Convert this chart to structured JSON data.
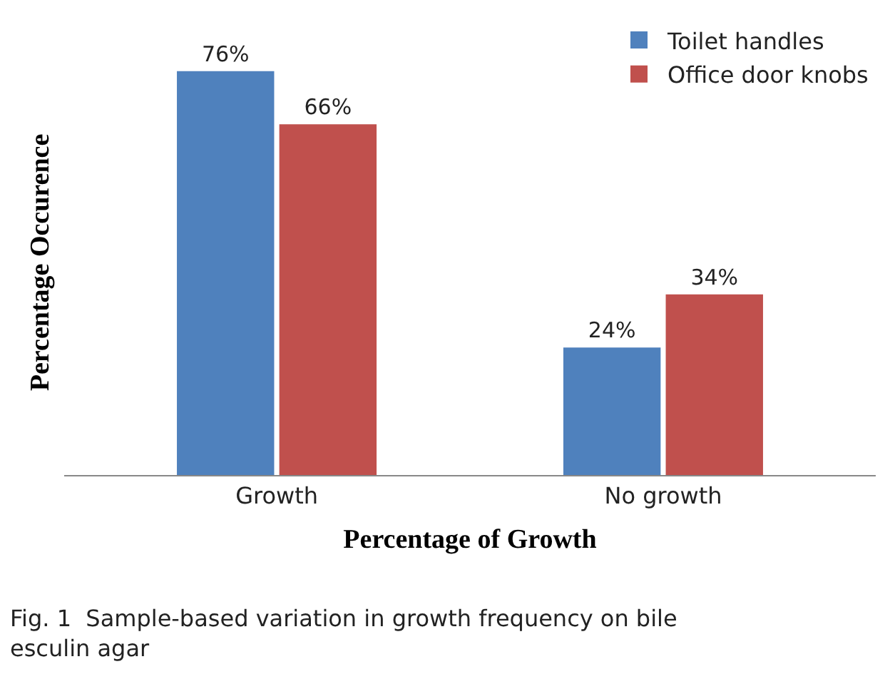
{
  "chart_data": {
    "type": "bar",
    "xlabel": "Percentage of Growth",
    "ylabel": "Percentage Occurence",
    "categories": [
      "Growth",
      "No growth"
    ],
    "series": [
      {
        "name": "Toilet handles",
        "color": "#4f81bd",
        "values": [
          76,
          24
        ],
        "value_labels": [
          "76%",
          "24%"
        ]
      },
      {
        "name": "Office door knobs",
        "color": "#c0504d",
        "values": [
          66,
          34
        ],
        "value_labels": [
          "66%",
          "34%"
        ]
      }
    ],
    "legend": "top right",
    "annotations": [
      "Fig. 1  Sample-based variation in growth frequency on bile esculin agar"
    ]
  }
}
